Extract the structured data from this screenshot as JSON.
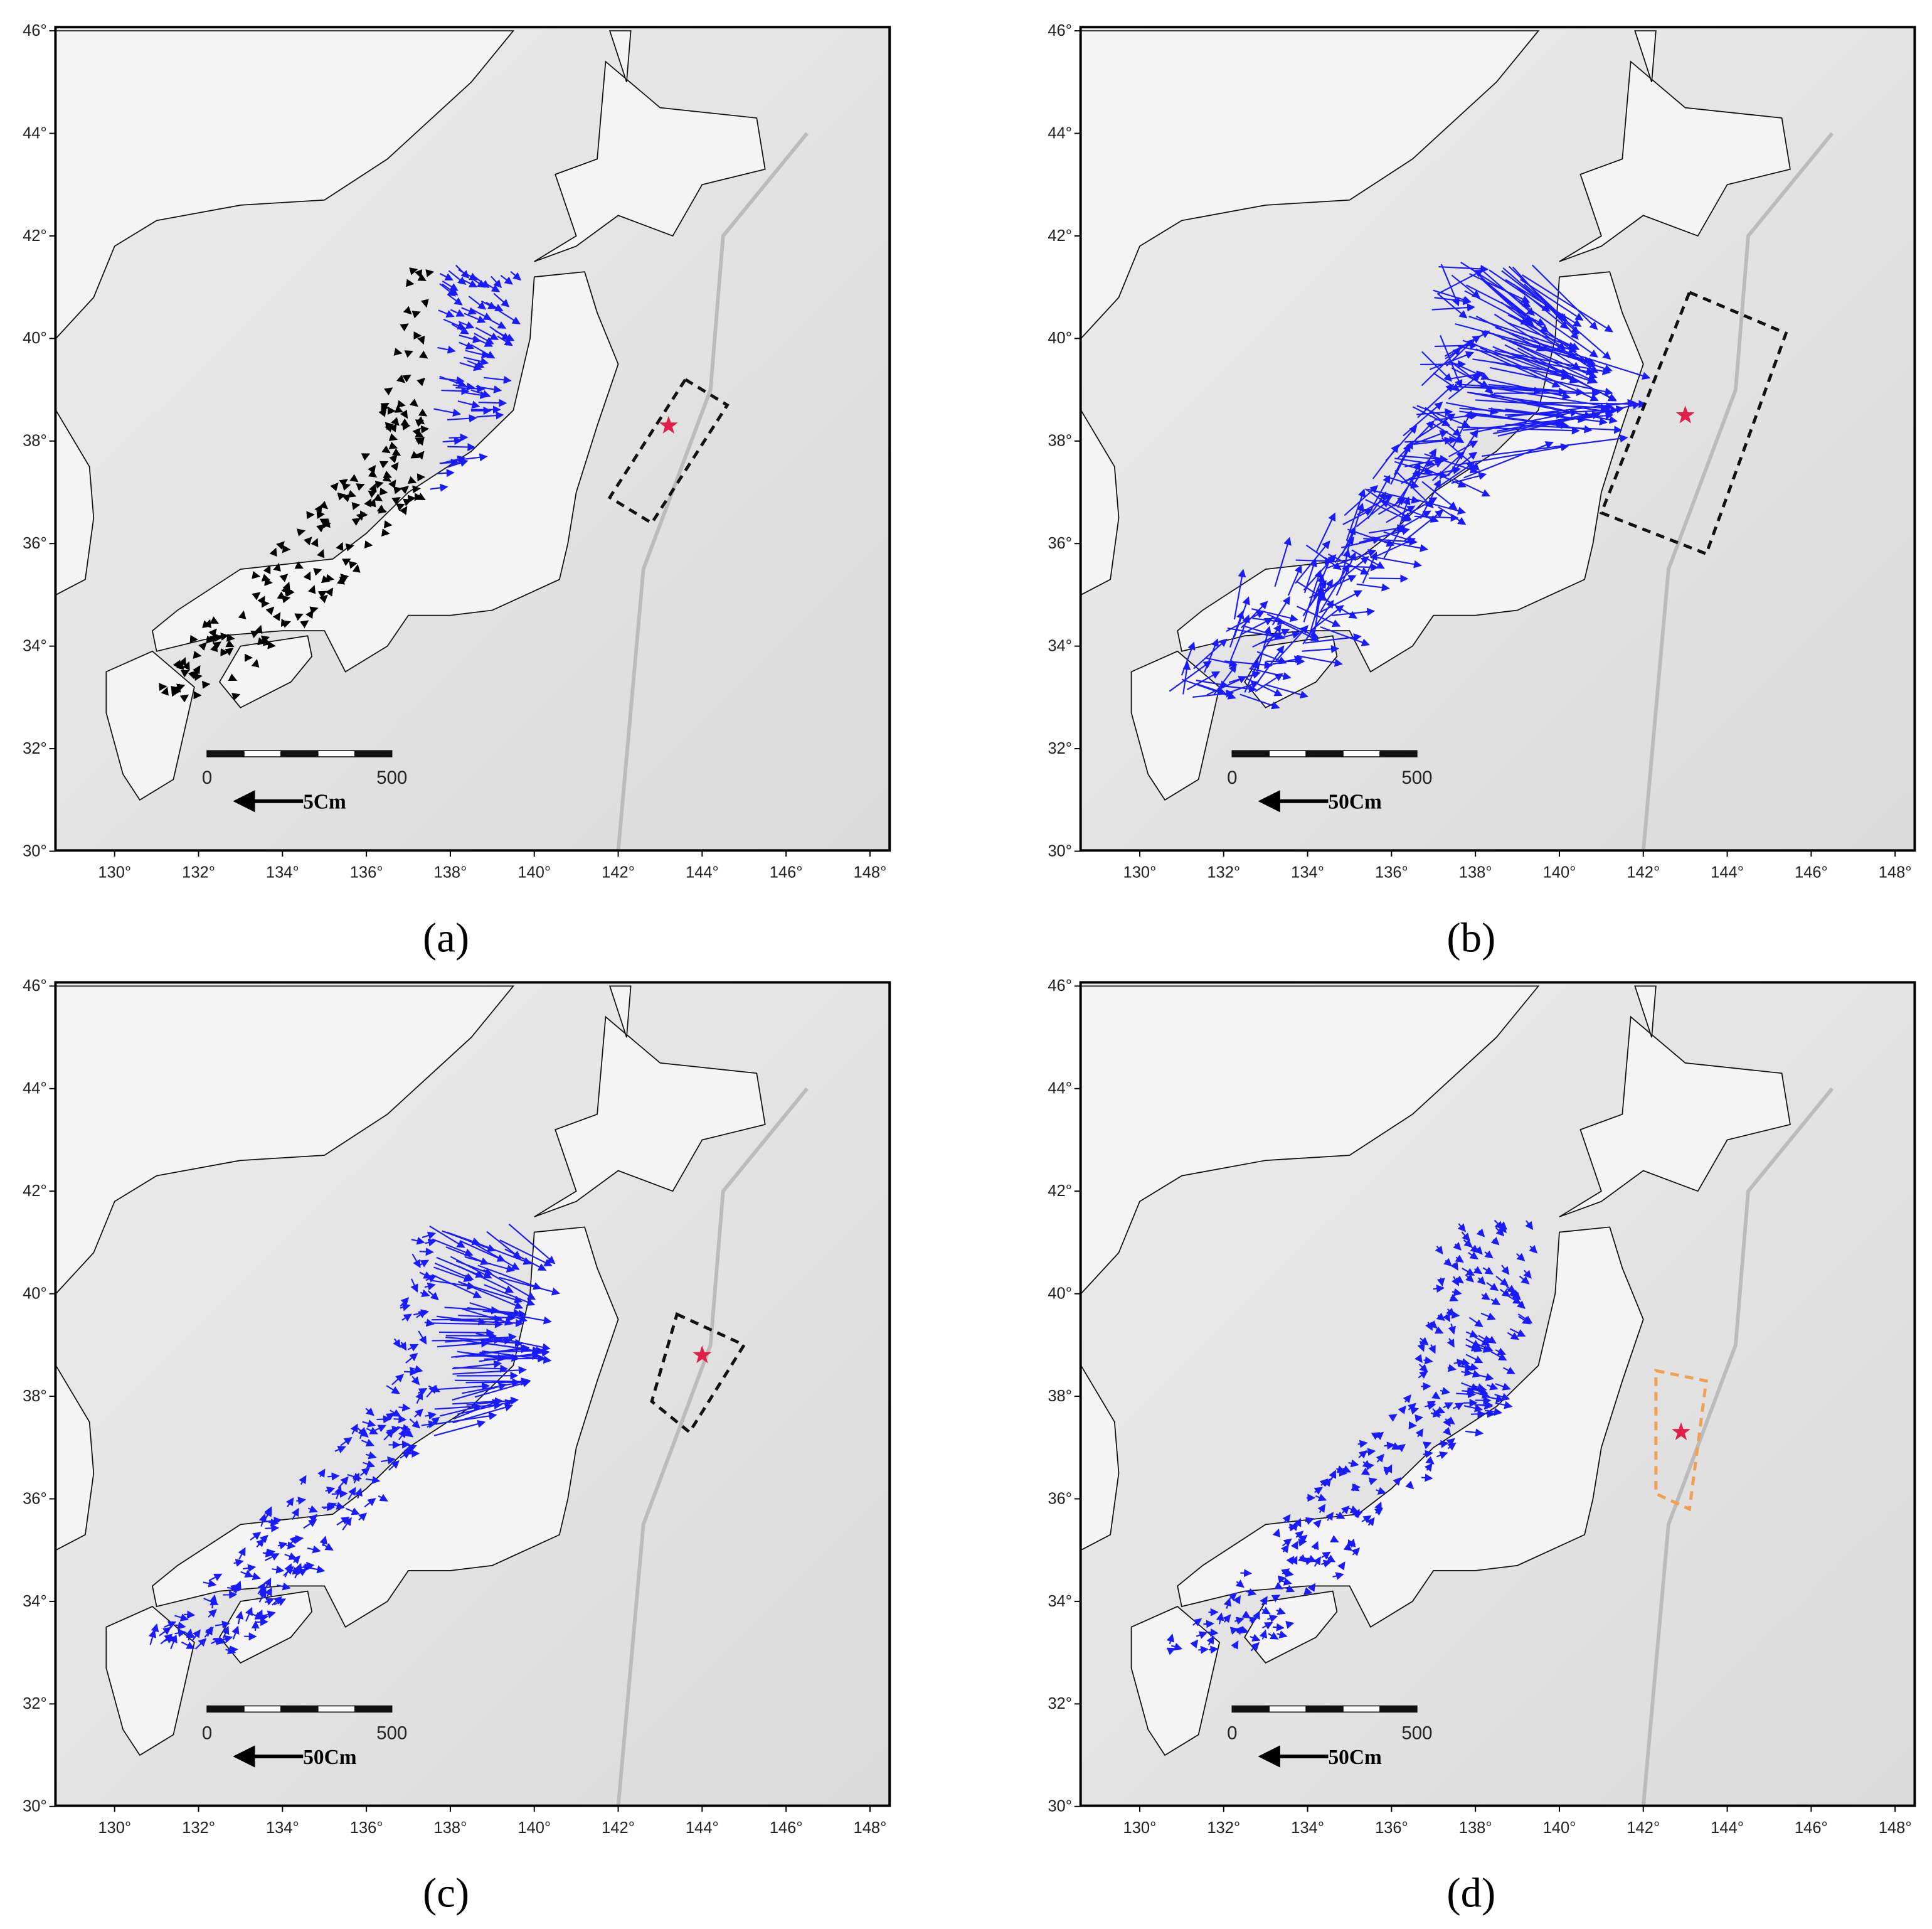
{
  "lon_ticks": [
    "130°",
    "132°",
    "134°",
    "136°",
    "138°",
    "140°",
    "142°",
    "144°",
    "146°",
    "148°"
  ],
  "lat_ticks": [
    "30°",
    "32°",
    "34°",
    "36°",
    "38°",
    "40°",
    "42°",
    "44°",
    "46°"
  ],
  "panels": [
    {
      "label": "(a)",
      "scale_start": "0",
      "scale_end": "500",
      "vector_scale": "5Cm"
    },
    {
      "label": "(b)",
      "scale_start": "0",
      "scale_end": "500",
      "vector_scale": "50Cm"
    },
    {
      "label": "(c)",
      "scale_start": "0",
      "scale_end": "500",
      "vector_scale": "50Cm"
    },
    {
      "label": "(d)",
      "scale_start": "0",
      "scale_end": "500",
      "vector_scale": "50Cm"
    }
  ]
}
